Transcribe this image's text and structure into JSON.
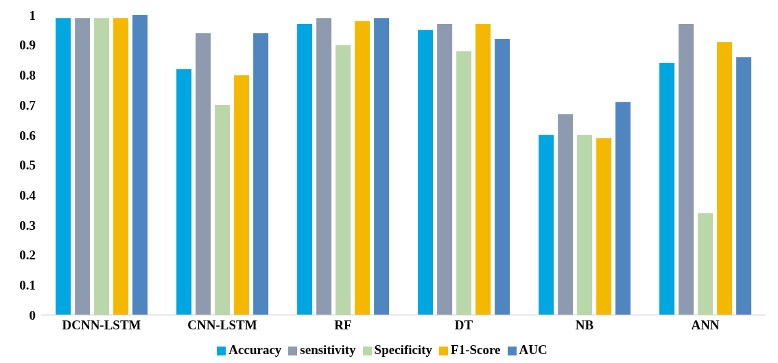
{
  "chart_data": {
    "type": "bar",
    "categories": [
      "DCNN-LSTM",
      "CNN-LSTM",
      "RF",
      "DT",
      "NB",
      "ANN"
    ],
    "series": [
      {
        "name": "Accuracy",
        "color": "#00a6e0",
        "values": [
          0.99,
          0.82,
          0.97,
          0.95,
          0.6,
          0.84
        ]
      },
      {
        "name": "sensitivity",
        "color": "#8d9ab0",
        "values": [
          0.99,
          0.94,
          0.99,
          0.97,
          0.67,
          0.97
        ]
      },
      {
        "name": "Specificity",
        "color": "#b9d7a8",
        "values": [
          0.99,
          0.7,
          0.9,
          0.88,
          0.6,
          0.34
        ]
      },
      {
        "name": "F1-Score",
        "color": "#f5b800",
        "values": [
          0.99,
          0.8,
          0.98,
          0.97,
          0.59,
          0.91
        ]
      },
      {
        "name": "AUC",
        "color": "#4f86c0",
        "values": [
          1.0,
          0.94,
          0.99,
          0.92,
          0.71,
          0.86
        ]
      }
    ],
    "ylim": [
      0,
      1
    ],
    "yticks": [
      0,
      0.1,
      0.2,
      0.3,
      0.4,
      0.5,
      0.6,
      0.7,
      0.8,
      0.9,
      1
    ],
    "grid": false,
    "legend": "bottom"
  }
}
